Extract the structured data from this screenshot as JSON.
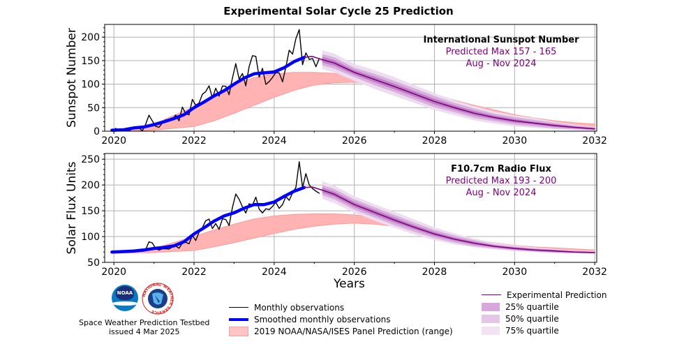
{
  "title": "Experimental Solar Cycle 25 Prediction",
  "xlabel": "Years",
  "colors": {
    "monthly": "#000000",
    "smoothed": "#0000ff",
    "panel": "#ffb3b3",
    "prediction": "#800080",
    "q25": "#c080c8",
    "q50": "#d8b0dc",
    "q75": "#eedcf0",
    "annotation": "#800080"
  },
  "chart_data": [
    {
      "type": "line",
      "ylabel": "Sunspot Number",
      "xlim": [
        2019.77,
        2032.05
      ],
      "ylim": [
        0,
        227
      ],
      "xticks": [
        2020,
        2022,
        2024,
        2026,
        2028,
        2030,
        2032
      ],
      "yticks": [
        0,
        50,
        100,
        150,
        200
      ],
      "grid": true,
      "annotation": {
        "title": "International Sunspot Number",
        "line1": "Predicted Max 157 - 165",
        "line2": "Aug - Nov 2024"
      },
      "monthly": {
        "start": 2020.0,
        "values": [
          6.2,
          0.2,
          1.5,
          5.2,
          0.2,
          5.8,
          6.1,
          7.5,
          0.6,
          14.4,
          34.0,
          21.8,
          10.4,
          8.2,
          17.2,
          24.5,
          21.2,
          25.0,
          34.3,
          22.0,
          51.3,
          37.4,
          34.8,
          67.5,
          55.3,
          59.9,
          78.5,
          84.1,
          96.5,
          70.5,
          91.4,
          74.6,
          96.0,
          95.5,
          77.6,
          113.1,
          143.6,
          110.9,
          122.6,
          96.4,
          137.4,
          160.5,
          159.1,
          114.8,
          133.6,
          99.4,
          105.4,
          114.2,
          124.7,
          124.0,
          104.9,
          136.5,
          172.1,
          163.8,
          196.8,
          216.0,
          141.4,
          166.4,
          152.5,
          154.5,
          137.0,
          154.6
        ]
      },
      "smoothed": {
        "x": [
          2019.95,
          2020.25,
          2020.5,
          2020.75,
          2021.0,
          2021.25,
          2021.5,
          2021.75,
          2022.0,
          2022.25,
          2022.5,
          2022.75,
          2023.0,
          2023.25,
          2023.5,
          2023.75,
          2024.0,
          2024.25,
          2024.5,
          2024.75
        ],
        "y": [
          2,
          3,
          7,
          9,
          14,
          20,
          27,
          35,
          50,
          62,
          75,
          86,
          100,
          113,
          122,
          124,
          126,
          135,
          148,
          157
        ]
      },
      "prediction": {
        "x": [
          2024.75,
          2024.95,
          2025.2,
          2025.5,
          2026,
          2026.5,
          2027,
          2027.5,
          2028,
          2028.5,
          2029,
          2029.5,
          2030,
          2030.5,
          2031,
          2031.5,
          2032
        ],
        "y": [
          157,
          159,
          152,
          145,
          125,
          110,
          95,
          79,
          63,
          50,
          38,
          29,
          22,
          17,
          12,
          8,
          5
        ]
      },
      "quartiles": {
        "x": [
          2025.2,
          2025.5,
          2026,
          2026.5,
          2027,
          2027.5,
          2028,
          2028.5,
          2029,
          2029.5,
          2030,
          2030.5,
          2031,
          2031.5,
          2032
        ],
        "q25_lower": [
          146,
          139,
          120,
          104,
          89,
          73,
          57,
          45,
          33,
          25,
          18,
          14,
          9,
          6,
          3
        ],
        "q25_upper": [
          158,
          151,
          130,
          116,
          101,
          85,
          69,
          55,
          43,
          33,
          26,
          20,
          15,
          10,
          7
        ],
        "q50_lower": [
          140,
          133,
          115,
          98,
          83,
          67,
          51,
          40,
          28,
          21,
          14,
          10,
          6,
          4,
          2
        ],
        "q50_upper": [
          164,
          157,
          135,
          122,
          107,
          91,
          75,
          60,
          48,
          37,
          30,
          24,
          18,
          12,
          8
        ],
        "q75_lower": [
          132,
          125,
          107,
          90,
          75,
          60,
          45,
          34,
          23,
          16,
          10,
          7,
          4,
          2,
          1
        ],
        "q75_upper": [
          172,
          165,
          143,
          130,
          115,
          98,
          81,
          66,
          53,
          42,
          34,
          28,
          20,
          14,
          9
        ]
      },
      "panel_range": {
        "x": [
          2020,
          2021,
          2022,
          2022.5,
          2023,
          2023.5,
          2024,
          2024.5,
          2025,
          2025.5,
          2026,
          2026.5,
          2027,
          2027.5,
          2028,
          2028.5,
          2029,
          2029.5,
          2030,
          2030.5,
          2031,
          2031.5,
          2032
        ],
        "lower": [
          0,
          2,
          10,
          22,
          38,
          55,
          72,
          87,
          98,
          103,
          104,
          101,
          95,
          83,
          70,
          57,
          45,
          35,
          27,
          20,
          15,
          11,
          8
        ],
        "upper": [
          2,
          15,
          52,
          78,
          100,
          114,
          122,
          125,
          125,
          123,
          115,
          107,
          98,
          88,
          78,
          66,
          55,
          45,
          35,
          28,
          22,
          18,
          15
        ]
      }
    },
    {
      "type": "line",
      "ylabel": "Solar Flux Units",
      "xlim": [
        2019.77,
        2032.05
      ],
      "ylim": [
        50,
        261
      ],
      "xticks": [
        2020,
        2022,
        2024,
        2026,
        2028,
        2030,
        2032
      ],
      "yticks": [
        50,
        100,
        150,
        200,
        250
      ],
      "grid": true,
      "annotation": {
        "title": "F10.7cm Radio Flux",
        "line1": "Predicted Max 193 - 200",
        "line2": "Aug - Nov 2024"
      },
      "monthly": {
        "start": 2020.0,
        "values": [
          71.8,
          71.0,
          70.2,
          69.2,
          69.7,
          71.7,
          71.3,
          71.9,
          71.3,
          74.8,
          89.7,
          87.8,
          76.8,
          73.8,
          76.3,
          76.5,
          75.8,
          79.8,
          81.7,
          77.4,
          87.4,
          88.9,
          86.0,
          102.3,
          92.4,
          108.4,
          117.4,
          130.7,
          133.9,
          115.5,
          125.2,
          114.0,
          134.5,
          133.1,
          121.4,
          156.6,
          182.5,
          172.2,
          157.4,
          145.7,
          163.6,
          160.8,
          176.5,
          153.3,
          145.7,
          153.9,
          152.2,
          158.4,
          166.5,
          154.6,
          162.1,
          177.5,
          170.2,
          184.6,
          195.0,
          245.0,
          195.0,
          222.0,
          200.0,
          193.0,
          188.0,
          184.0
        ]
      },
      "smoothed": {
        "x": [
          2019.95,
          2020.25,
          2020.5,
          2020.75,
          2021.0,
          2021.25,
          2021.5,
          2021.75,
          2022.0,
          2022.25,
          2022.5,
          2022.75,
          2023.0,
          2023.25,
          2023.5,
          2023.75,
          2024.0,
          2024.25,
          2024.5,
          2024.75
        ],
        "y": [
          70,
          71,
          72,
          74,
          77,
          79,
          82,
          90,
          105,
          117,
          130,
          140,
          146,
          155,
          162,
          162,
          167,
          178,
          188,
          195
        ]
      },
      "prediction": {
        "x": [
          2024.75,
          2024.95,
          2025.2,
          2025.5,
          2026,
          2026.5,
          2027,
          2027.5,
          2028,
          2028.5,
          2029,
          2029.5,
          2030,
          2030.5,
          2031,
          2031.5,
          2032
        ],
        "y": [
          195,
          196,
          190,
          182,
          162,
          147,
          132,
          118,
          105,
          95,
          87,
          81,
          77,
          74,
          72,
          70,
          69
        ]
      },
      "quartiles": {
        "x": [
          2025.2,
          2025.5,
          2026,
          2026.5,
          2027,
          2027.5,
          2028,
          2028.5,
          2029,
          2029.5,
          2030,
          2030.5,
          2031,
          2031.5,
          2032
        ],
        "q25_lower": [
          185,
          177,
          157,
          142,
          127,
          114,
          101,
          92,
          84,
          79,
          75,
          72,
          70,
          69,
          68
        ],
        "q25_upper": [
          195,
          187,
          167,
          152,
          137,
          122,
          109,
          98,
          90,
          83,
          79,
          76,
          74,
          71,
          70
        ],
        "q50_lower": [
          180,
          172,
          152,
          137,
          122,
          109,
          97,
          88,
          81,
          77,
          73,
          71,
          69,
          68,
          67
        ],
        "q50_upper": [
          200,
          192,
          172,
          157,
          142,
          127,
          113,
          102,
          93,
          85,
          81,
          77,
          75,
          72,
          71
        ],
        "q75_lower": [
          173,
          165,
          146,
          131,
          117,
          104,
          93,
          85,
          79,
          75,
          72,
          70,
          68,
          67,
          67
        ],
        "q75_upper": [
          207,
          199,
          178,
          163,
          148,
          133,
          118,
          106,
          96,
          88,
          83,
          79,
          76,
          73,
          72
        ]
      },
      "panel_range": {
        "x": [
          2020,
          2021,
          2022,
          2022.5,
          2023,
          2023.5,
          2024,
          2024.5,
          2025,
          2025.5,
          2026,
          2026.5,
          2027,
          2027.5,
          2028,
          2028.5,
          2029,
          2029.5,
          2030,
          2030.5,
          2031,
          2031.5,
          2032
        ],
        "lower": [
          68,
          69,
          73,
          80,
          88,
          97,
          106,
          114,
          120,
          124,
          126,
          124,
          120,
          113,
          104,
          96,
          88,
          82,
          77,
          74,
          72,
          71,
          70
        ],
        "upper": [
          69,
          77,
          100,
          113,
          124,
          134,
          140,
          143,
          144,
          144,
          142,
          138,
          130,
          121,
          111,
          102,
          94,
          88,
          83,
          80,
          78,
          76,
          74
        ]
      }
    }
  ],
  "legend": {
    "monthly": "Monthly observations",
    "smoothed": "Smoothed monthly observations",
    "panel": "2019 NOAA/NASA/ISES Panel Prediction (range)",
    "prediction": "Experimental Prediction",
    "q25": "25% quartile",
    "q50": "50% quartile",
    "q75": "75% quartile"
  },
  "footer": {
    "org": "Space Weather Prediction Testbed",
    "issued": "issued 4 Mar 2025",
    "logo1": "NOAA",
    "logo2": "NATIONAL WEATHER SERVICE"
  }
}
